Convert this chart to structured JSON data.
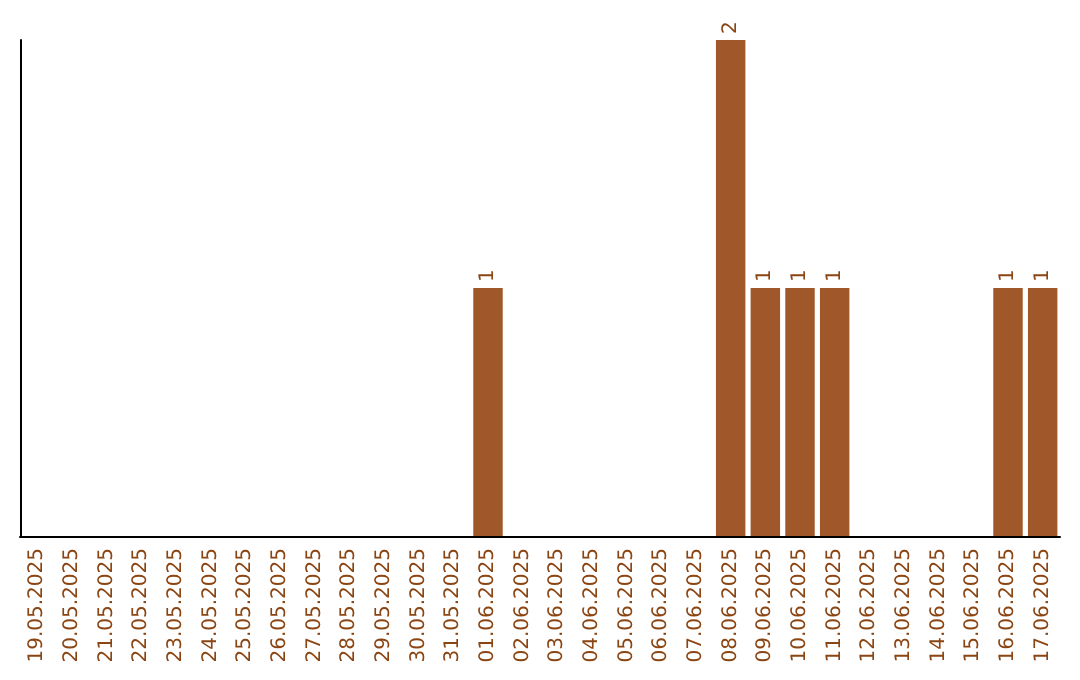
{
  "chart_data": {
    "type": "bar",
    "categories": [
      "19.05.2025",
      "20.05.2025",
      "21.05.2025",
      "22.05.2025",
      "23.05.2025",
      "24.05.2025",
      "25.05.2025",
      "26.05.2025",
      "27.05.2025",
      "28.05.2025",
      "29.05.2025",
      "30.05.2025",
      "31.05.2025",
      "01.06.2025",
      "02.06.2025",
      "03.06.2025",
      "04.06.2025",
      "05.06.2025",
      "06.06.2025",
      "07.06.2025",
      "08.06.2025",
      "09.06.2025",
      "10.06.2025",
      "11.06.2025",
      "12.06.2025",
      "13.06.2025",
      "14.06.2025",
      "15.06.2025",
      "16.06.2025",
      "17.06.2025"
    ],
    "values": [
      null,
      null,
      null,
      null,
      null,
      null,
      null,
      null,
      null,
      null,
      null,
      null,
      null,
      1,
      null,
      null,
      null,
      null,
      null,
      null,
      2,
      1,
      1,
      1,
      null,
      null,
      null,
      null,
      1,
      1
    ],
    "data_labels": true,
    "color": "#a0582a",
    "tick_labels": "x",
    "grid": false
  }
}
